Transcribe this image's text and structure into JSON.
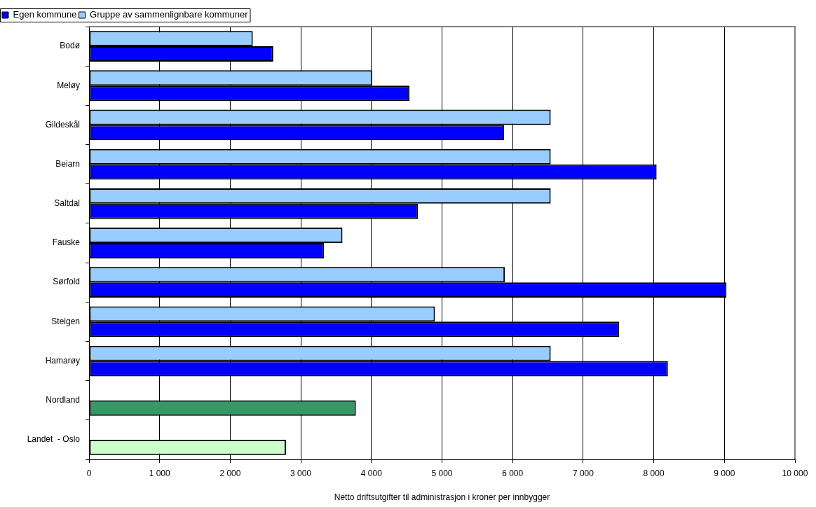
{
  "chart_data": {
    "type": "bar",
    "orientation": "horizontal",
    "xlabel": "Netto driftsutgifter til administrasjon i kroner per innbygger",
    "categories": [
      "Bodø",
      "Meløy",
      "Gildeskål",
      "Beiarn",
      "Saltdal",
      "Fauske",
      "Sørfold",
      "Steigen",
      "Hamarøy",
      "Nordland",
      "Landet  - Oslo"
    ],
    "series": [
      {
        "name": "Egen kommune",
        "color": "#0000ff",
        "colors": [
          "#0000ff",
          "#0000ff",
          "#0000ff",
          "#0000ff",
          "#0000ff",
          "#0000ff",
          "#0000ff",
          "#0000ff",
          "#0000ff",
          "#339966",
          "#ccffcc"
        ],
        "values": [
          2610,
          4540,
          5880,
          8040,
          4660,
          3330,
          9030,
          7510,
          8200,
          3780,
          2790
        ]
      },
      {
        "name": "Gruppe av sammenlignbare kommuner",
        "color": "#99ccff",
        "values": [
          2320,
          4010,
          6540,
          6540,
          6540,
          3590,
          5890,
          4900,
          6540,
          null,
          null
        ]
      }
    ],
    "xlim": [
      0,
      10000
    ],
    "xticks": [
      0,
      {
        "value": 1000,
        "label": "1 000"
      },
      {
        "value": 2000,
        "label": "2 000"
      },
      {
        "value": 3000,
        "label": "3 000"
      },
      {
        "value": 4000,
        "label": "4 000"
      },
      {
        "value": 5000,
        "label": "5 000"
      },
      {
        "value": 6000,
        "label": "6 000"
      },
      {
        "value": 7000,
        "label": "7 000"
      },
      {
        "value": 8000,
        "label": "8 000"
      },
      {
        "value": 9000,
        "label": "9 000"
      },
      {
        "value": 10000,
        "label": "10 000"
      }
    ],
    "grid": "x",
    "legend": "top left"
  }
}
